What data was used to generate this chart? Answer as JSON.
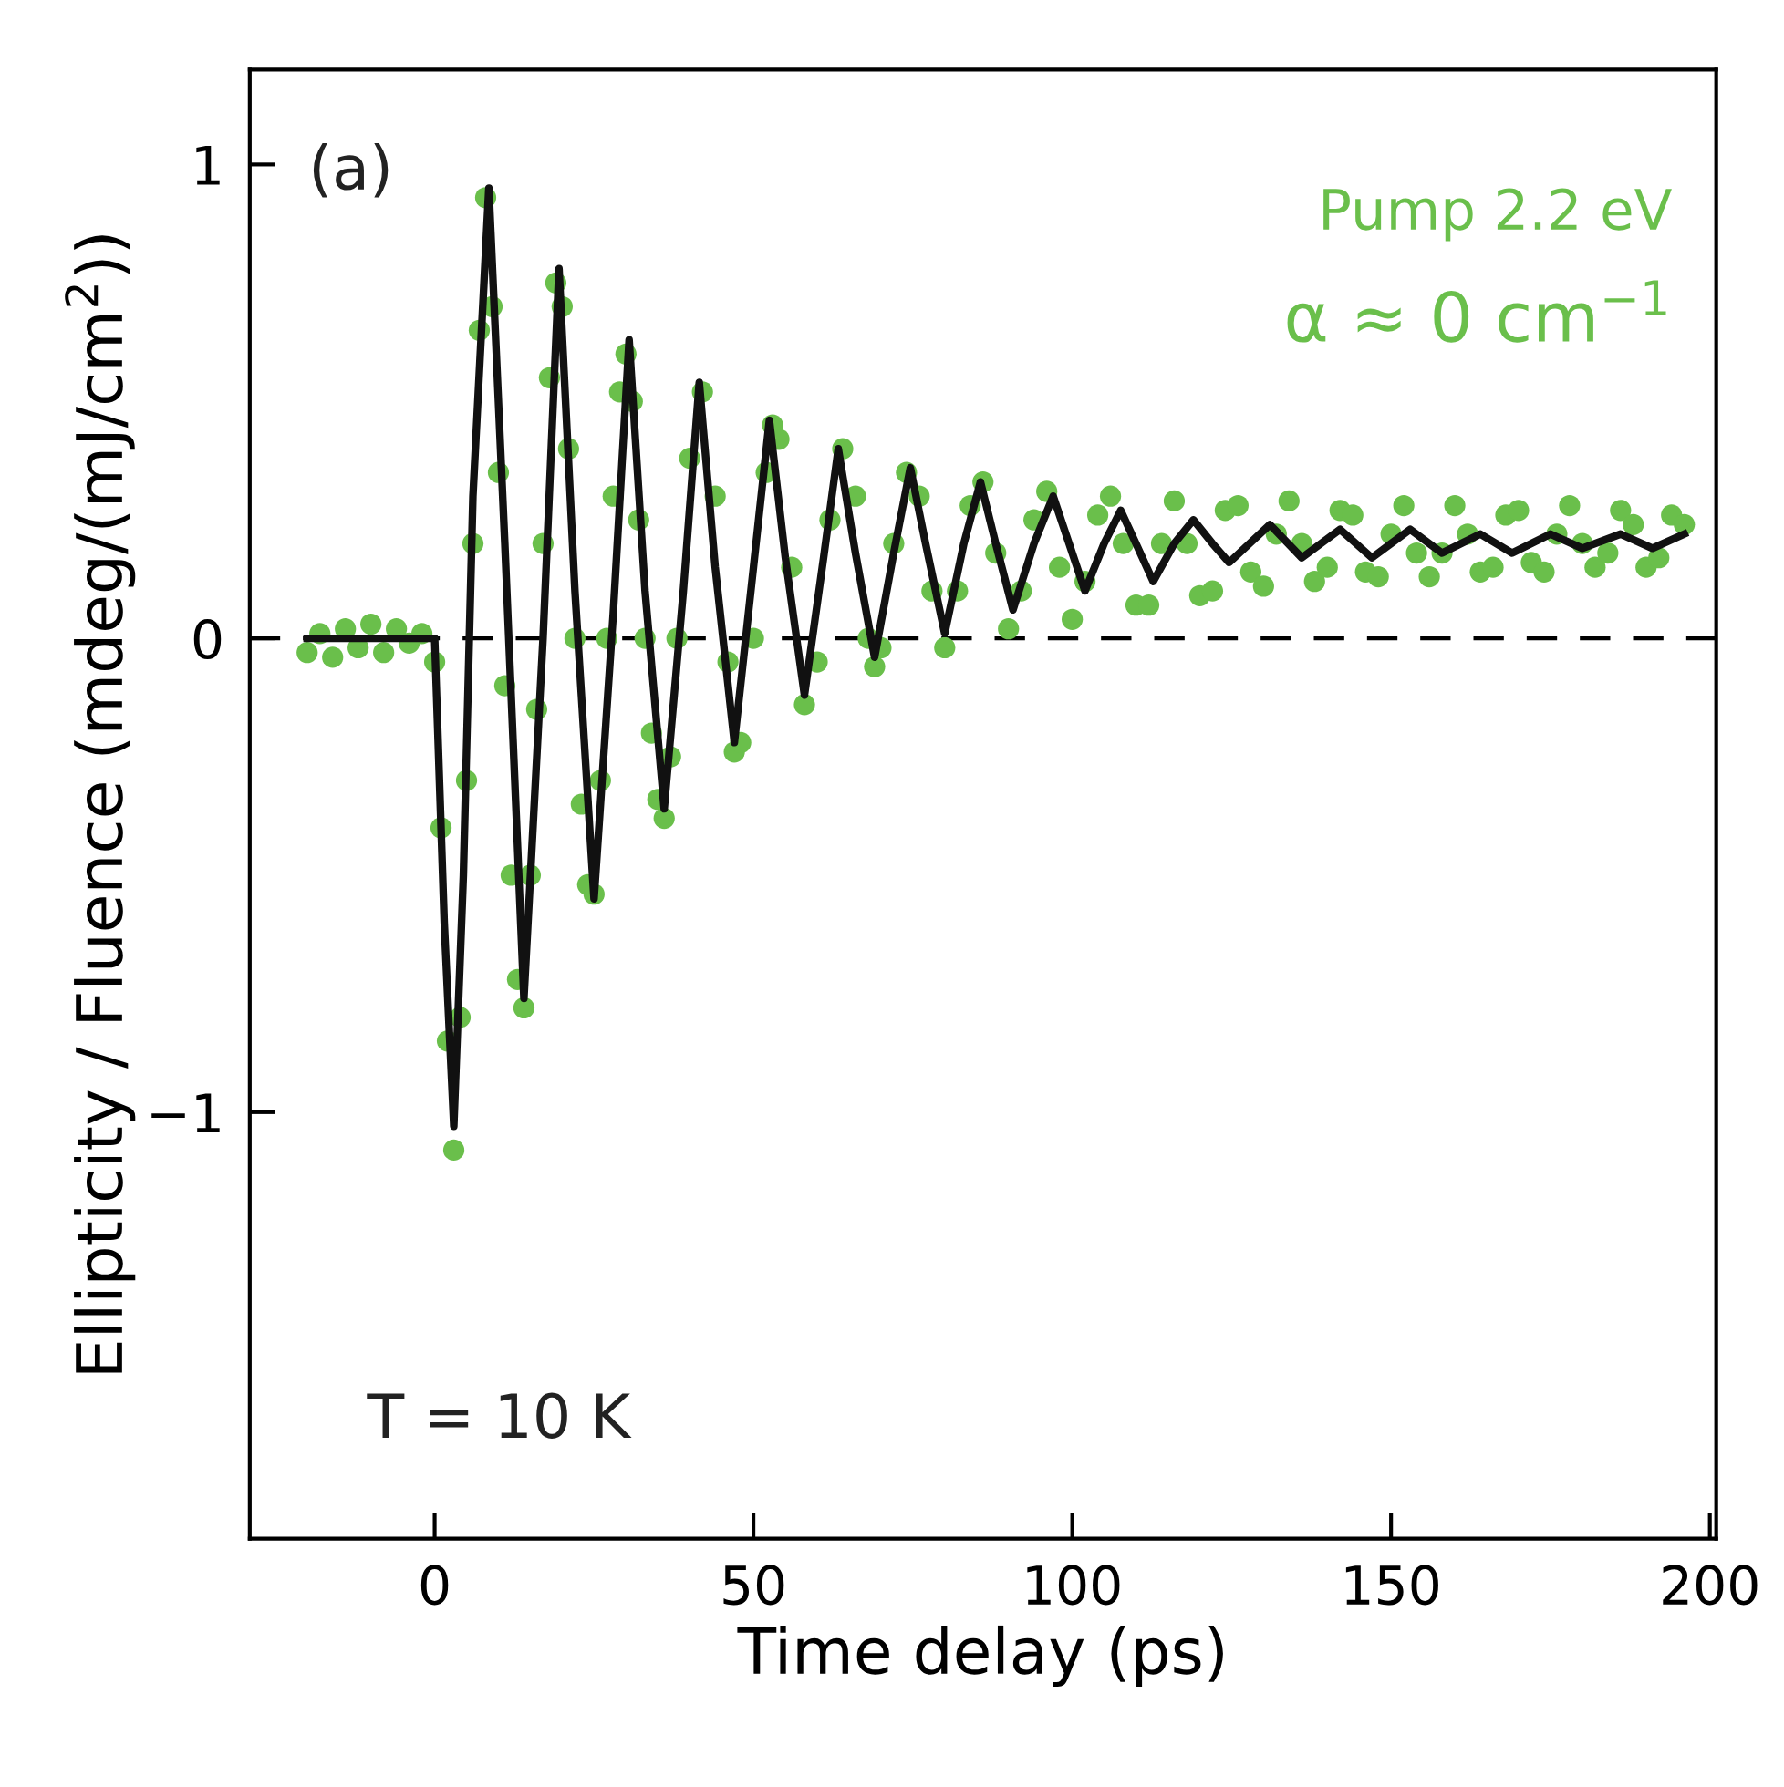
{
  "chart_data": {
    "type": "line",
    "xlabel": "Time delay (ps)",
    "ylabel": "Ellipticity / Fluence (mdeg/(mJ/cm$^{2}$))",
    "xlim": [
      -29,
      201
    ],
    "xticks": [
      0,
      50,
      100,
      150,
      200
    ],
    "ylim": [
      -1.9,
      1.2
    ],
    "yticks": [
      {
        "value": -1,
        "label": "−1"
      },
      0,
      1
    ],
    "grid": false,
    "legend": false,
    "ref_lines": [
      {
        "axis": "y",
        "value": 0,
        "color": "#000000",
        "line_style": "dashed"
      }
    ],
    "annotations": [
      "(a)",
      "Pump 2.2 eV",
      "α ≈ 0 cm$^{−1}$",
      "T = 10 K"
    ],
    "series": [
      {
        "type": "scatter",
        "color": "#6abf4b",
        "marker": "circle",
        "x": [
          -20,
          -18,
          -16,
          -14,
          -12,
          -10,
          -8,
          -6,
          -4,
          -2,
          0,
          1,
          2,
          3,
          4,
          5,
          6,
          7,
          8,
          9,
          10,
          11,
          12,
          13,
          14,
          15,
          16,
          17,
          18,
          19,
          20,
          21,
          22,
          23,
          24,
          25,
          26,
          27,
          28,
          29,
          30,
          31,
          32,
          33,
          34,
          35,
          36,
          37,
          38,
          40,
          42,
          44,
          46,
          47,
          48,
          50,
          52,
          53,
          54,
          56,
          58,
          60,
          62,
          64,
          66,
          68,
          69,
          70,
          72,
          74,
          76,
          78,
          80,
          82,
          84,
          86,
          88,
          90,
          92,
          94,
          96,
          98,
          100,
          102,
          104,
          106,
          108,
          110,
          112,
          114,
          116,
          118,
          120,
          122,
          124,
          126,
          128,
          130,
          132,
          134,
          136,
          138,
          140,
          142,
          144,
          146,
          148,
          150,
          152,
          154,
          156,
          158,
          160,
          162,
          164,
          166,
          168,
          170,
          172,
          174,
          176,
          178,
          180,
          182,
          184,
          186,
          188,
          190,
          192,
          194,
          196
        ],
        "values": [
          -0.03,
          0.01,
          -0.04,
          0.02,
          -0.02,
          0.03,
          -0.03,
          0.02,
          -0.01,
          0.01,
          -0.05,
          -0.4,
          -0.85,
          -1.08,
          -0.8,
          -0.3,
          0.2,
          0.65,
          0.93,
          0.7,
          0.35,
          -0.1,
          -0.5,
          -0.72,
          -0.78,
          -0.5,
          -0.15,
          0.2,
          0.55,
          0.75,
          0.7,
          0.4,
          0.0,
          -0.35,
          -0.52,
          -0.54,
          -0.3,
          0.0,
          0.3,
          0.52,
          0.6,
          0.5,
          0.25,
          0.0,
          -0.2,
          -0.34,
          -0.38,
          -0.25,
          0.0,
          0.38,
          0.52,
          0.3,
          -0.05,
          -0.24,
          -0.22,
          0.0,
          0.35,
          0.45,
          0.42,
          0.15,
          -0.14,
          -0.05,
          0.25,
          0.4,
          0.3,
          0.0,
          -0.06,
          -0.02,
          0.2,
          0.35,
          0.3,
          0.1,
          -0.02,
          0.1,
          0.28,
          0.33,
          0.18,
          0.02,
          0.1,
          0.25,
          0.31,
          0.15,
          0.04,
          0.12,
          0.26,
          0.3,
          0.2,
          0.07,
          0.07,
          0.2,
          0.29,
          0.2,
          0.09,
          0.1,
          0.27,
          0.28,
          0.14,
          0.11,
          0.22,
          0.29,
          0.2,
          0.12,
          0.15,
          0.27,
          0.26,
          0.14,
          0.13,
          0.22,
          0.28,
          0.18,
          0.13,
          0.18,
          0.28,
          0.22,
          0.14,
          0.15,
          0.26,
          0.27,
          0.16,
          0.14,
          0.22,
          0.28,
          0.2,
          0.15,
          0.18,
          0.27,
          0.24,
          0.15,
          0.17,
          0.26,
          0.24
        ]
      },
      {
        "color": "#111111",
        "x": [
          -20,
          0,
          1.5,
          3,
          4.5,
          6,
          8.5,
          11,
          14,
          17,
          19.5,
          22,
          25,
          28,
          30.5,
          33,
          36,
          39,
          41.5,
          44,
          47,
          50,
          52.5,
          55,
          58,
          61,
          63.3,
          66,
          69,
          72,
          74.6,
          77,
          80,
          83,
          85.6,
          88,
          90.7,
          94,
          97,
          99.5,
          102,
          105,
          107.6,
          110,
          112.7,
          116,
          119,
          122,
          124.6,
          131,
          136,
          142,
          147,
          153,
          158,
          164,
          169,
          175,
          180,
          186,
          191,
          196
        ],
        "values": [
          0,
          0,
          -0.6,
          -1.03,
          -0.5,
          0.3,
          0.95,
          0.2,
          -0.76,
          0.0,
          0.78,
          0.1,
          -0.55,
          0.05,
          0.63,
          0.1,
          -0.36,
          0.1,
          0.54,
          0.15,
          -0.22,
          0.15,
          0.46,
          0.17,
          -0.12,
          0.17,
          0.4,
          0.18,
          -0.04,
          0.18,
          0.36,
          0.2,
          0.01,
          0.2,
          0.33,
          0.2,
          0.06,
          0.2,
          0.3,
          0.2,
          0.1,
          0.2,
          0.27,
          0.2,
          0.12,
          0.2,
          0.25,
          0.2,
          0.16,
          0.24,
          0.17,
          0.23,
          0.17,
          0.23,
          0.18,
          0.22,
          0.18,
          0.22,
          0.19,
          0.22,
          0.19,
          0.22
        ]
      }
    ]
  }
}
